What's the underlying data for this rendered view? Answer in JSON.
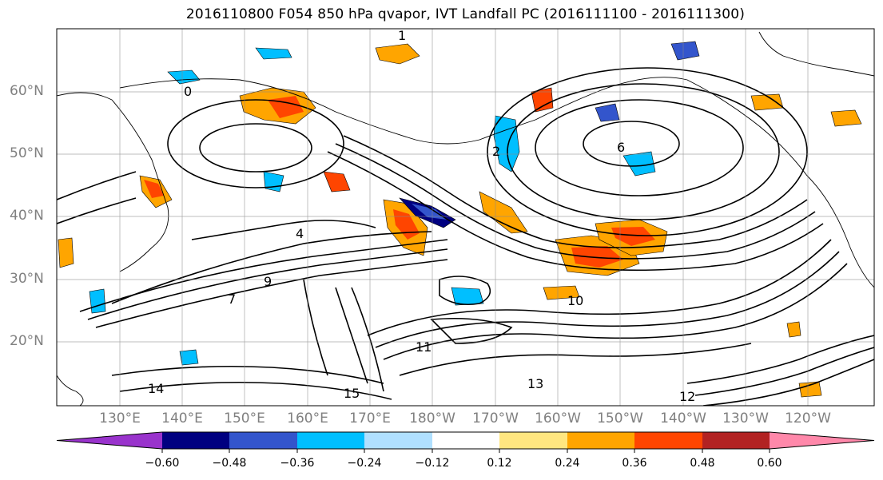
{
  "title": "2016110800 F054 850 hPa qvapor, IVT Landfall PC (2016111100 - 2016111300)",
  "lat_labels": [
    "60°N",
    "50°N",
    "40°N",
    "30°N",
    "20°N"
  ],
  "lon_labels": [
    "130°E",
    "140°E",
    "150°E",
    "160°E",
    "170°E",
    "180°W",
    "170°W",
    "160°W",
    "150°W",
    "140°W",
    "130°W",
    "120°W"
  ],
  "colorbar": {
    "colors": [
      "#9933cc",
      "#000080",
      "#3355cc",
      "#00bfff",
      "#b0e0ff",
      "#ffffff",
      "#ffe680",
      "#ffa500",
      "#ff4500",
      "#b22222",
      "#ff88aa"
    ],
    "tick_labels": [
      "−0.60",
      "−0.48",
      "−0.36",
      "−0.24",
      "−0.12",
      "0.12",
      "0.24",
      "0.36",
      "0.48",
      "0.60"
    ]
  },
  "contour_labels": [
    "0",
    "1",
    "2",
    "4",
    "6",
    "7",
    "9",
    "10",
    "11",
    "12",
    "13",
    "14",
    "15"
  ]
}
